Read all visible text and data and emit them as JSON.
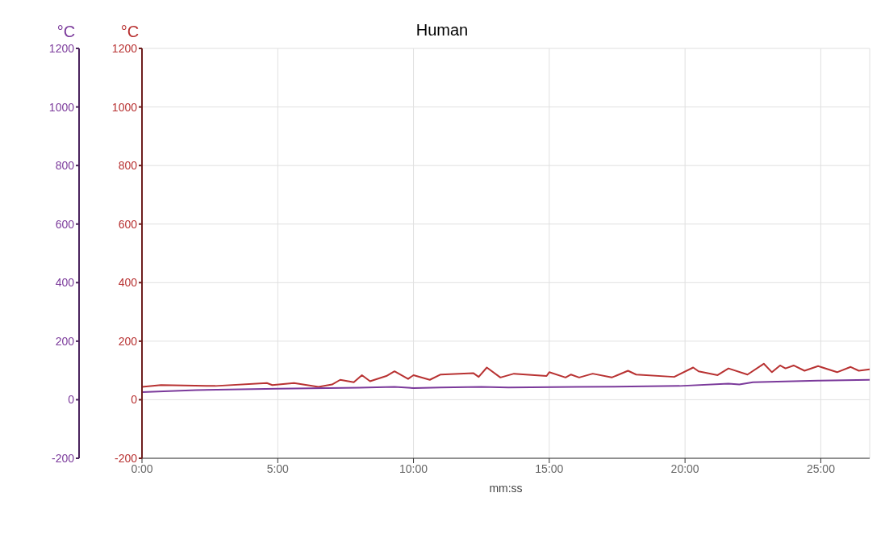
{
  "chart_data": {
    "type": "line",
    "title": "Human",
    "xlabel": "mm:ss",
    "ylabel": "°C",
    "y2label": "°C",
    "xlim": [
      0,
      26.8
    ],
    "xticks": [
      {
        "value": 0,
        "label": "0:00"
      },
      {
        "value": 5,
        "label": "5:00"
      },
      {
        "value": 10,
        "label": "10:00"
      },
      {
        "value": 15,
        "label": "15:00"
      },
      {
        "value": 20,
        "label": "20:00"
      },
      {
        "value": 25,
        "label": "25:00"
      }
    ],
    "ylim": [
      -200,
      1200
    ],
    "yticks": [
      -200,
      0,
      200,
      400,
      600,
      800,
      1000,
      1200
    ],
    "y2lim": [
      -200,
      1200
    ],
    "y2ticks": [
      -200,
      0,
      200,
      400,
      600,
      800,
      1000,
      1200
    ],
    "grid": true,
    "legend": false,
    "marker": "none",
    "line_style": "solid",
    "series": [
      {
        "color": "#b83232",
        "axis": "y2",
        "x": [
          0,
          0.7,
          2.7,
          4.6,
          4.8,
          5.6,
          6.5,
          7.0,
          7.3,
          7.8,
          8.1,
          8.4,
          9.0,
          9.3,
          9.8,
          10.0,
          10.6,
          11.0,
          12.2,
          12.4,
          12.7,
          13.2,
          13.7,
          14.9,
          15.0,
          15.6,
          15.8,
          16.1,
          16.6,
          17.3,
          17.9,
          18.2,
          19.6,
          20.3,
          20.5,
          21.2,
          21.6,
          22.3,
          22.9,
          23.2,
          23.5,
          23.7,
          24.0,
          24.4,
          24.9,
          25.6,
          26.1,
          26.4,
          26.8
        ],
        "values": [
          44,
          50,
          47,
          57,
          50,
          57,
          44,
          52,
          68,
          60,
          84,
          63,
          81,
          97,
          71,
          84,
          68,
          86,
          91,
          78,
          110,
          76,
          89,
          81,
          94,
          76,
          86,
          76,
          89,
          76,
          99,
          86,
          78,
          110,
          97,
          84,
          107,
          86,
          123,
          94,
          117,
          107,
          117,
          99,
          115,
          94,
          112,
          99,
          104
        ]
      },
      {
        "color": "#7b3a9b",
        "axis": "y",
        "x": [
          0,
          2,
          5,
          8,
          9.3,
          10,
          11,
          12.5,
          13.5,
          16,
          18,
          19.8,
          21.6,
          22,
          22.5,
          24.9,
          26.8
        ],
        "values": [
          26,
          33,
          38,
          41,
          44,
          40,
          42,
          44,
          42,
          44,
          45,
          47,
          55,
          52,
          60,
          65,
          68
        ]
      }
    ]
  }
}
